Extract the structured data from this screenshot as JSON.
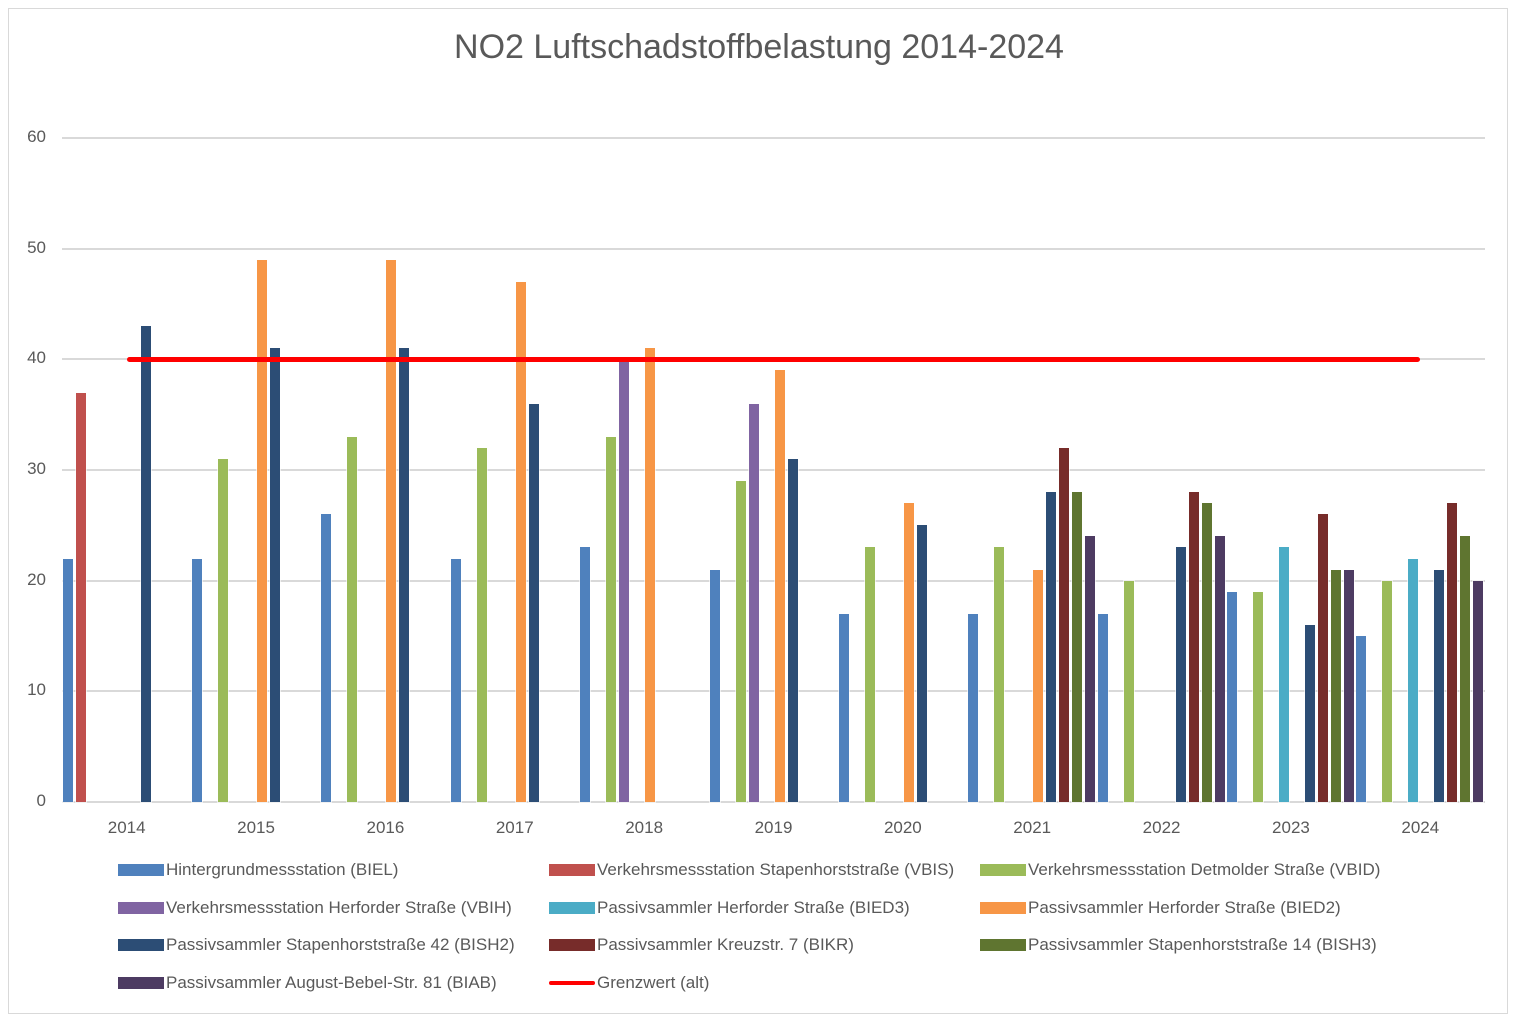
{
  "chart_data": {
    "type": "bar",
    "title": "NO2 Luftschadstoffbelastung 2014-2024",
    "xlabel": "",
    "ylabel": "",
    "ylim": [
      0,
      60
    ],
    "yticks": [
      0,
      10,
      20,
      30,
      40,
      50,
      60
    ],
    "grid": true,
    "legend_position": "bottom",
    "categories": [
      "2014",
      "2015",
      "2016",
      "2017",
      "2018",
      "2019",
      "2020",
      "2021",
      "2022",
      "2023",
      "2024"
    ],
    "series": [
      {
        "name": "Hintergrundmessstation (BIEL)",
        "color": "#4f81bd",
        "values": [
          22,
          22,
          26,
          22,
          23,
          21,
          17,
          17,
          17,
          19,
          15
        ]
      },
      {
        "name": "Verkehrsmessstation Stapenhorststraße (VBIS)",
        "color": "#c0504d",
        "values": [
          37,
          null,
          null,
          null,
          null,
          null,
          null,
          null,
          null,
          null,
          null
        ]
      },
      {
        "name": "Verkehrsmessstation Detmolder Straße (VBID)",
        "color": "#9bbb59",
        "values": [
          null,
          31,
          33,
          32,
          33,
          29,
          23,
          23,
          20,
          19,
          20
        ]
      },
      {
        "name": "Verkehrsmessstation Herforder Straße  (VBIH)",
        "color": "#8064a2",
        "values": [
          null,
          null,
          null,
          null,
          40,
          36,
          null,
          null,
          null,
          null,
          null
        ]
      },
      {
        "name": "Passivsammler Herforder Straße (BIED3)",
        "color": "#4bacc6",
        "values": [
          null,
          null,
          null,
          null,
          null,
          null,
          null,
          null,
          null,
          23,
          22
        ]
      },
      {
        "name": "Passivsammler Herforder Straße (BIED2)",
        "color": "#f79646",
        "values": [
          null,
          49,
          49,
          47,
          41,
          39,
          27,
          21,
          null,
          null,
          null
        ]
      },
      {
        "name": "Passivsammler Stapenhorststraße 42 (BISH2)",
        "color": "#2c4d75",
        "values": [
          43,
          41,
          41,
          36,
          null,
          31,
          25,
          28,
          23,
          16,
          21
        ]
      },
      {
        "name": "Passivsammler Kreuzstr. 7 (BIKR)",
        "color": "#772c2a",
        "values": [
          null,
          null,
          null,
          null,
          null,
          null,
          null,
          32,
          28,
          26,
          27
        ]
      },
      {
        "name": "Passivsammler Stapenhorststraße 14 (BISH3)",
        "color": "#5f7530",
        "values": [
          null,
          null,
          null,
          null,
          null,
          null,
          null,
          28,
          27,
          21,
          24
        ]
      },
      {
        "name": "Passivsammler August-Bebel-Str. 81 (BIAB)",
        "color": "#4d3b62",
        "values": [
          null,
          null,
          null,
          null,
          null,
          null,
          null,
          24,
          24,
          21,
          20
        ]
      }
    ],
    "lines": [
      {
        "name": "Grenzwert (alt)",
        "color": "#ff0000",
        "value": 40
      }
    ]
  },
  "legend": [
    {
      "label": "Hintergrundmessstation (BIEL)",
      "color": "#4f81bd",
      "type": "bar"
    },
    {
      "label": "Verkehrsmessstation Stapenhorststraße (VBIS)",
      "color": "#c0504d",
      "type": "bar"
    },
    {
      "label": "Verkehrsmessstation Detmolder Straße (VBID)",
      "color": "#9bbb59",
      "type": "bar"
    },
    {
      "label": "Verkehrsmessstation Herforder Straße  (VBIH)",
      "color": "#8064a2",
      "type": "bar"
    },
    {
      "label": "Passivsammler Herforder Straße (BIED3)",
      "color": "#4bacc6",
      "type": "bar"
    },
    {
      "label": "Passivsammler Herforder Straße (BIED2)",
      "color": "#f79646",
      "type": "bar"
    },
    {
      "label": "Passivsammler Stapenhorststraße 42 (BISH2)",
      "color": "#2c4d75",
      "type": "bar"
    },
    {
      "label": "Passivsammler Kreuzstr. 7 (BIKR)",
      "color": "#772c2a",
      "type": "bar"
    },
    {
      "label": "Passivsammler Stapenhorststraße 14 (BISH3)",
      "color": "#5f7530",
      "type": "bar"
    },
    {
      "label": "Passivsammler August-Bebel-Str. 81 (BIAB)",
      "color": "#4d3b62",
      "type": "bar"
    },
    {
      "label": "Grenzwert (alt)",
      "color": "#ff0000",
      "type": "line"
    }
  ]
}
